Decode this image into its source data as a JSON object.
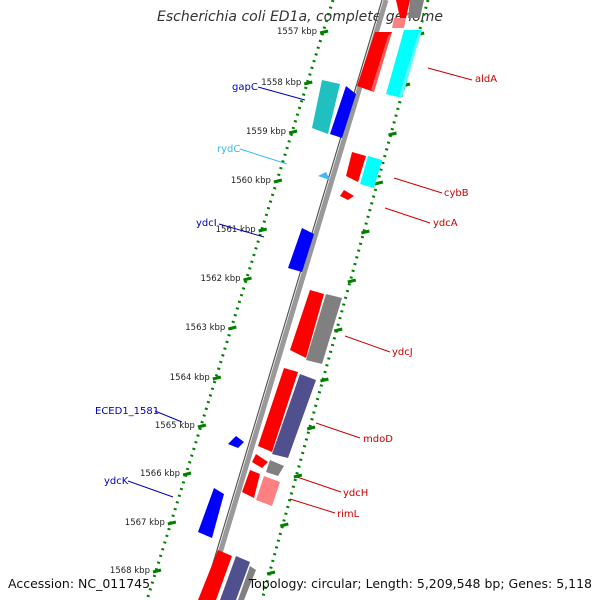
{
  "header": {
    "title": "Escherichia coli ED1a, complete genome"
  },
  "footer": {
    "accession": "Accession: NC_011745",
    "summary": "Topology: circular; Length: 5,209,548 bp; Genes: 5,118"
  },
  "colors": {
    "forward_strand": "#ff0000",
    "forward_rna": "#00ffff",
    "forward_pseudo": "#ff8080",
    "reverse_gene": "#0000ff",
    "reverse_other": "#808080",
    "reverse_dark": "#50508f",
    "reverse_rna": "#3fb8ff",
    "reverse_teal": "#20c0c0",
    "label_forward": "#cc0000",
    "label_reverse": "#0000bb",
    "label_rna": "#33bbee",
    "axis": "#888888",
    "tick": "#008000"
  },
  "ticks": [
    {
      "label": "1557 kbp"
    },
    {
      "label": "1558 kbp"
    },
    {
      "label": "1559 kbp"
    },
    {
      "label": "1560 kbp"
    },
    {
      "label": "1561 kbp"
    },
    {
      "label": "1562 kbp"
    },
    {
      "label": "1563 kbp"
    },
    {
      "label": "1564 kbp"
    },
    {
      "label": "1565 kbp"
    },
    {
      "label": "1566 kbp"
    },
    {
      "label": "1567 kbp"
    },
    {
      "label": "1568 kbp"
    }
  ],
  "gene_labels": [
    {
      "name": "aldA",
      "strand": "forward"
    },
    {
      "name": "cybB",
      "strand": "forward"
    },
    {
      "name": "ydcA",
      "strand": "forward"
    },
    {
      "name": "ydcJ",
      "strand": "forward"
    },
    {
      "name": "mdoD",
      "strand": "forward"
    },
    {
      "name": "ydcH",
      "strand": "forward"
    },
    {
      "name": "rimL",
      "strand": "forward"
    },
    {
      "name": "gapC",
      "strand": "reverse"
    },
    {
      "name": "rydC",
      "strand": "rna"
    },
    {
      "name": "ydcI",
      "strand": "reverse"
    },
    {
      "name": "ECED1_1581",
      "strand": "reverse"
    },
    {
      "name": "ydcK",
      "strand": "reverse"
    }
  ]
}
